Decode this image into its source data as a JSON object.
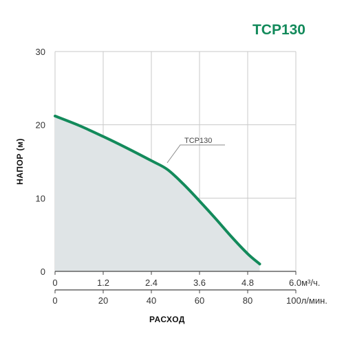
{
  "chart_data": {
    "type": "area",
    "title": "TCP130",
    "ylabel": "НАПОР (м)",
    "xlabel": "РАСХОД",
    "ylim": [
      0,
      30
    ],
    "yticks": [
      "0",
      "10",
      "20",
      "30"
    ],
    "xlim_m3h": [
      0,
      6.0
    ],
    "xticks_m3h": [
      "0",
      "1.2",
      "2.4",
      "3.6",
      "4.8",
      "6.0м³/ч."
    ],
    "xticks_lmin": [
      "0",
      "20",
      "40",
      "60",
      "80",
      "100л/мин."
    ],
    "grid": true,
    "series": [
      {
        "name": "TCP130",
        "x": [
          0,
          0.6,
          1.2,
          1.8,
          2.4,
          2.8,
          3.2,
          3.6,
          4.0,
          4.4,
          4.8,
          5.1
        ],
        "y": [
          21.2,
          19.9,
          18.4,
          16.8,
          15.1,
          13.9,
          11.9,
          9.6,
          7.2,
          4.7,
          2.4,
          1.0
        ]
      }
    ],
    "line_color": "#138a5b",
    "fill_color": "#dfe4e6",
    "grid_color": "#c8c8c8",
    "title_color": "#138a5b"
  }
}
